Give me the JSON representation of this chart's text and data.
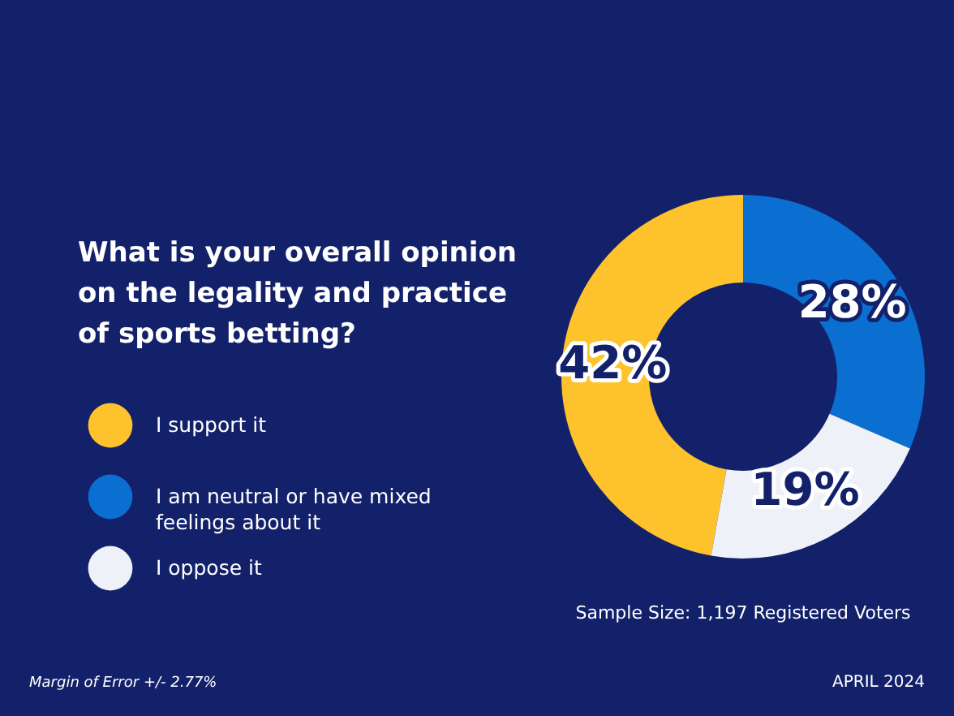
{
  "chart_data": {
    "type": "donut",
    "title": "What is your overall opinion on the legality and practice of sports betting?",
    "categories": [
      "I support it",
      "I am neutral or have mixed feelings about it",
      "I oppose it"
    ],
    "values": [
      42,
      28,
      19
    ],
    "colors": [
      "#fec22d",
      "#0a6fd0",
      "#eef2f8"
    ],
    "value_labels": [
      "42%",
      "28%",
      "19%"
    ],
    "legend": "left",
    "annotations": [
      "Sample Size: 1,197 Registered Voters",
      "Margin of Error +/- 2.77%",
      "APRIL 2024"
    ]
  }
}
